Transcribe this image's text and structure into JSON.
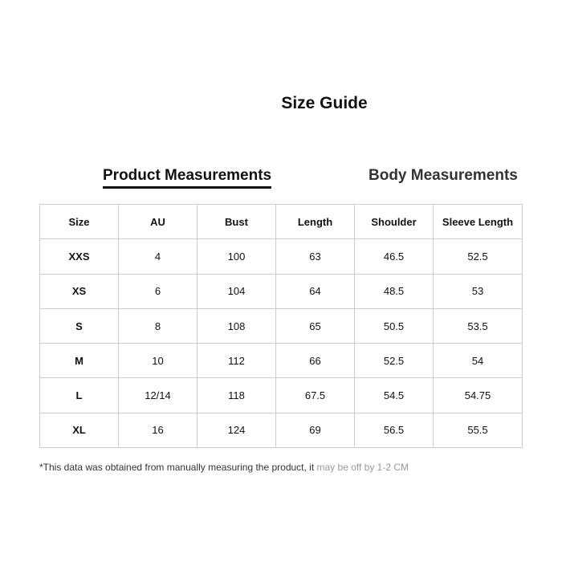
{
  "title": "Size Guide",
  "tabs": [
    {
      "label": "Product Measurements",
      "active": true
    },
    {
      "label": "Body Measurements",
      "active": false
    }
  ],
  "table": {
    "headers": [
      "Size",
      "AU",
      "Bust",
      "Length",
      "Shoulder",
      "Sleeve Length"
    ],
    "rows": [
      [
        "XXS",
        "4",
        "100",
        "63",
        "46.5",
        "52.5"
      ],
      [
        "XS",
        "6",
        "104",
        "64",
        "48.5",
        "53"
      ],
      [
        "S",
        "8",
        "108",
        "65",
        "50.5",
        "53.5"
      ],
      [
        "M",
        "10",
        "112",
        "66",
        "52.5",
        "54"
      ],
      [
        "L",
        "12/14",
        "118",
        "67.5",
        "54.5",
        "54.75"
      ],
      [
        "XL",
        "16",
        "124",
        "69",
        "56.5",
        "55.5"
      ]
    ]
  },
  "note": {
    "main": "*This data was obtained from manually measuring the product, it ",
    "faded": "may be off by 1-2 CM"
  }
}
